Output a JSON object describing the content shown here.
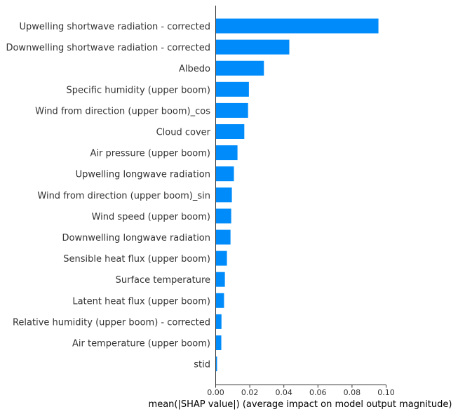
{
  "chart_data": {
    "type": "bar",
    "orientation": "horizontal",
    "categories": [
      "Upwelling shortwave radiation - corrected",
      "Downwelling shortwave radiation - corrected",
      "Albedo",
      "Specific humidity (upper boom)",
      "Wind from direction (upper boom)_cos",
      "Cloud cover",
      "Air pressure (upper boom)",
      "Upwelling longwave radiation",
      "Wind from direction (upper boom)_sin",
      "Wind speed (upper boom)",
      "Downwelling longwave radiation",
      "Sensible heat flux (upper boom)",
      "Surface temperature",
      "Latent heat flux (upper boom)",
      "Relative humidity (upper boom) - corrected",
      "Air temperature (upper boom)",
      "stid"
    ],
    "values": [
      0.0955,
      0.0432,
      0.0283,
      0.0195,
      0.019,
      0.0168,
      0.0128,
      0.0107,
      0.0095,
      0.0091,
      0.0087,
      0.0066,
      0.0054,
      0.0049,
      0.0034,
      0.0033,
      0.0008
    ],
    "xlabel": "mean(|SHAP value|) (average impact on model output magnitude)",
    "ylabel": "",
    "xlim": [
      0,
      0.1
    ],
    "xticks": [
      0.0,
      0.02,
      0.04,
      0.06,
      0.08,
      0.1
    ],
    "xtick_labels": [
      "0.00",
      "0.02",
      "0.04",
      "0.06",
      "0.08",
      "0.10"
    ],
    "bar_color": "#008bfb",
    "axis_color": "#333333",
    "grid": false
  }
}
